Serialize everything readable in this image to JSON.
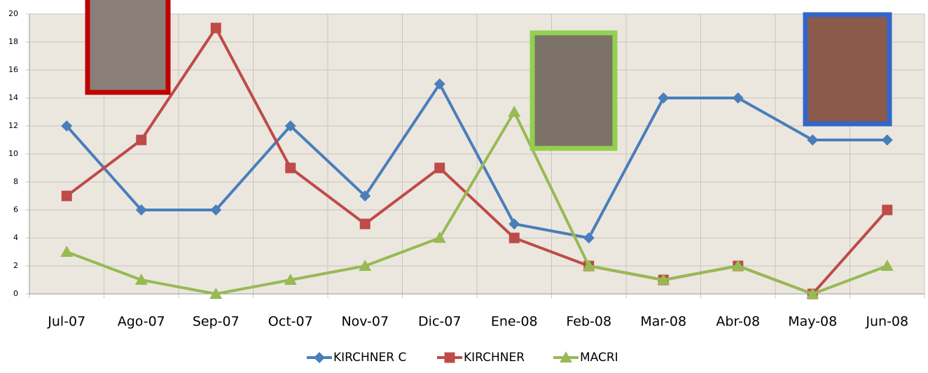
{
  "chart_data": {
    "type": "line",
    "categories": [
      "Jul-07",
      "Ago-07",
      "Sep-07",
      "Oct-07",
      "Nov-07",
      "Dic-07",
      "Ene-08",
      "Feb-08",
      "Mar-08",
      "Abr-08",
      "May-08",
      "Jun-08"
    ],
    "series": [
      {
        "name": "KIRCHNER C",
        "color": "#4a7ebb",
        "marker": "diamond",
        "values": [
          12,
          6,
          6,
          12,
          7,
          15,
          5,
          4,
          14,
          14,
          11,
          11
        ]
      },
      {
        "name": "KIRCHNER",
        "color": "#be4b48",
        "marker": "square",
        "values": [
          7,
          11,
          19,
          9,
          5,
          9,
          4,
          2,
          1,
          2,
          0,
          6
        ]
      },
      {
        "name": "MACRI",
        "color": "#98b954",
        "marker": "triangle",
        "values": [
          3,
          1,
          0,
          1,
          2,
          4,
          13,
          2,
          1,
          2,
          0,
          2
        ]
      }
    ],
    "ylim": [
      0,
      20
    ],
    "yticks": [
      0,
      2,
      4,
      6,
      8,
      10,
      12,
      14,
      16,
      18,
      20
    ],
    "grid": true,
    "legend": "bottom"
  }
}
